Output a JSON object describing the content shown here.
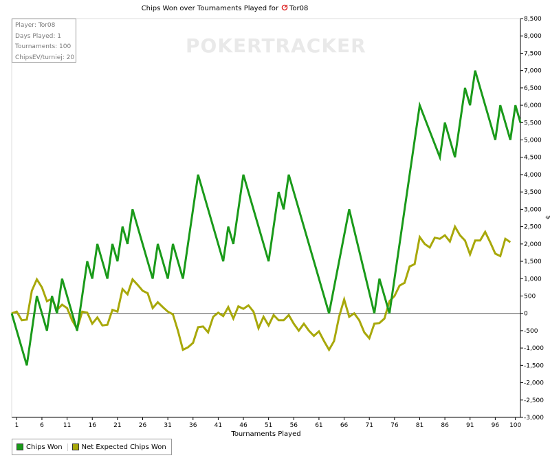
{
  "watermark": "POKERTRACKER",
  "info": {
    "player": "Player: Tor08",
    "days": "Days Played: 1",
    "tournaments": "Tournaments: 100",
    "chipsev": "ChipsEV/turniej: 20"
  },
  "legend": {
    "chips_won": "Chips Won",
    "net_expected": "Net Expected Chips Won"
  },
  "colors": {
    "chips_won": "#1a9a1a",
    "net_expected": "#a8a80a",
    "zero_line": "#555555"
  },
  "chart_data": {
    "type": "line",
    "title": "Chips Won over Tournaments Played for",
    "title_suffix": "Tor08",
    "xlabel": "Tournaments Played",
    "ylabel": "$",
    "xlim": [
      0,
      101
    ],
    "ylim": [
      -3000,
      8500
    ],
    "x_ticks": [
      1,
      6,
      11,
      16,
      21,
      26,
      31,
      36,
      41,
      46,
      51,
      56,
      61,
      66,
      71,
      76,
      81,
      86,
      91,
      96,
      100
    ],
    "y_ticks": [
      -3000,
      -2500,
      -2000,
      -1500,
      -1000,
      -500,
      0,
      500,
      1000,
      1500,
      2000,
      2500,
      3000,
      3500,
      4000,
      4500,
      5000,
      5500,
      6000,
      6500,
      7000,
      7500,
      8000,
      8500
    ],
    "y_tick_labels": [
      "-3,000",
      "-2,500",
      "-2,000",
      "-1,500",
      "-1,000",
      "-500",
      "0",
      "500",
      "1,000",
      "1,500",
      "2,000",
      "2,500",
      "3,000",
      "3,500",
      "4,000",
      "4,500",
      "5,000",
      "5,500",
      "6,000",
      "6,500",
      "7,000",
      "7,500",
      "8,000",
      "8,500"
    ],
    "series": [
      {
        "name": "Chips Won",
        "points": [
          [
            0,
            0
          ],
          [
            3,
            -1500
          ],
          [
            5,
            500
          ],
          [
            7,
            -500
          ],
          [
            8,
            500
          ],
          [
            9,
            0
          ],
          [
            10,
            1000
          ],
          [
            13,
            -500
          ],
          [
            15,
            1500
          ],
          [
            16,
            1000
          ],
          [
            17,
            2000
          ],
          [
            18,
            1500
          ],
          [
            19,
            1000
          ],
          [
            20,
            2000
          ],
          [
            21,
            1500
          ],
          [
            22,
            2500
          ],
          [
            23,
            2000
          ],
          [
            24,
            3000
          ],
          [
            28,
            1000
          ],
          [
            29,
            2000
          ],
          [
            31,
            1000
          ],
          [
            32,
            2000
          ],
          [
            34,
            1000
          ],
          [
            37,
            4000
          ],
          [
            42,
            1500
          ],
          [
            43,
            2500
          ],
          [
            44,
            2000
          ],
          [
            46,
            4000
          ],
          [
            51,
            1500
          ],
          [
            53,
            3500
          ],
          [
            54,
            3000
          ],
          [
            55,
            4000
          ],
          [
            63,
            0
          ],
          [
            67,
            3000
          ],
          [
            72,
            0
          ],
          [
            73,
            1000
          ],
          [
            75,
            0
          ],
          [
            81,
            6000
          ],
          [
            85,
            4500
          ],
          [
            86,
            5500
          ],
          [
            88,
            4500
          ],
          [
            90,
            6500
          ],
          [
            91,
            6000
          ],
          [
            92,
            7000
          ],
          [
            96,
            5000
          ],
          [
            97,
            6000
          ],
          [
            99,
            5000
          ],
          [
            100,
            6000
          ],
          [
            101,
            5500
          ]
        ]
      },
      {
        "name": "Net Expected Chips Won",
        "points": [
          [
            0,
            0
          ],
          [
            1,
            50
          ],
          [
            2,
            -200
          ],
          [
            3,
            -180
          ],
          [
            4,
            650
          ],
          [
            5,
            980
          ],
          [
            6,
            750
          ],
          [
            7,
            350
          ],
          [
            8,
            420
          ],
          [
            9,
            100
          ],
          [
            10,
            250
          ],
          [
            11,
            150
          ],
          [
            12,
            -200
          ],
          [
            13,
            -450
          ],
          [
            14,
            50
          ],
          [
            15,
            20
          ],
          [
            16,
            -300
          ],
          [
            17,
            -120
          ],
          [
            18,
            -350
          ],
          [
            19,
            -330
          ],
          [
            20,
            100
          ],
          [
            21,
            50
          ],
          [
            22,
            700
          ],
          [
            23,
            550
          ],
          [
            24,
            980
          ],
          [
            25,
            820
          ],
          [
            26,
            650
          ],
          [
            27,
            580
          ],
          [
            28,
            150
          ],
          [
            29,
            320
          ],
          [
            30,
            180
          ],
          [
            31,
            50
          ],
          [
            32,
            -30
          ],
          [
            33,
            -500
          ],
          [
            34,
            -1050
          ],
          [
            35,
            -980
          ],
          [
            36,
            -850
          ],
          [
            37,
            -400
          ],
          [
            38,
            -380
          ],
          [
            39,
            -550
          ],
          [
            40,
            -100
          ],
          [
            41,
            20
          ],
          [
            42,
            -80
          ],
          [
            43,
            180
          ],
          [
            44,
            -150
          ],
          [
            45,
            200
          ],
          [
            46,
            130
          ],
          [
            47,
            230
          ],
          [
            48,
            50
          ],
          [
            49,
            -430
          ],
          [
            50,
            -100
          ],
          [
            51,
            -350
          ],
          [
            52,
            -50
          ],
          [
            53,
            -200
          ],
          [
            54,
            -200
          ],
          [
            55,
            -50
          ],
          [
            56,
            -300
          ],
          [
            57,
            -500
          ],
          [
            58,
            -300
          ],
          [
            59,
            -500
          ],
          [
            60,
            -650
          ],
          [
            61,
            -520
          ],
          [
            62,
            -800
          ],
          [
            63,
            -1050
          ],
          [
            64,
            -800
          ],
          [
            65,
            -100
          ],
          [
            66,
            400
          ],
          [
            67,
            -100
          ],
          [
            68,
            0
          ],
          [
            69,
            -200
          ],
          [
            70,
            -550
          ],
          [
            71,
            -720
          ],
          [
            72,
            -300
          ],
          [
            73,
            -280
          ],
          [
            74,
            -150
          ],
          [
            75,
            350
          ],
          [
            76,
            500
          ],
          [
            77,
            800
          ],
          [
            78,
            880
          ],
          [
            79,
            1350
          ],
          [
            80,
            1420
          ],
          [
            81,
            2200
          ],
          [
            82,
            2000
          ],
          [
            83,
            1900
          ],
          [
            84,
            2180
          ],
          [
            85,
            2150
          ],
          [
            86,
            2250
          ],
          [
            87,
            2070
          ],
          [
            88,
            2500
          ],
          [
            89,
            2250
          ],
          [
            90,
            2100
          ],
          [
            91,
            1700
          ],
          [
            92,
            2100
          ],
          [
            93,
            2100
          ],
          [
            94,
            2350
          ],
          [
            95,
            2050
          ],
          [
            96,
            1720
          ],
          [
            97,
            1650
          ],
          [
            98,
            2150
          ],
          [
            99,
            2050
          ]
        ]
      }
    ]
  }
}
